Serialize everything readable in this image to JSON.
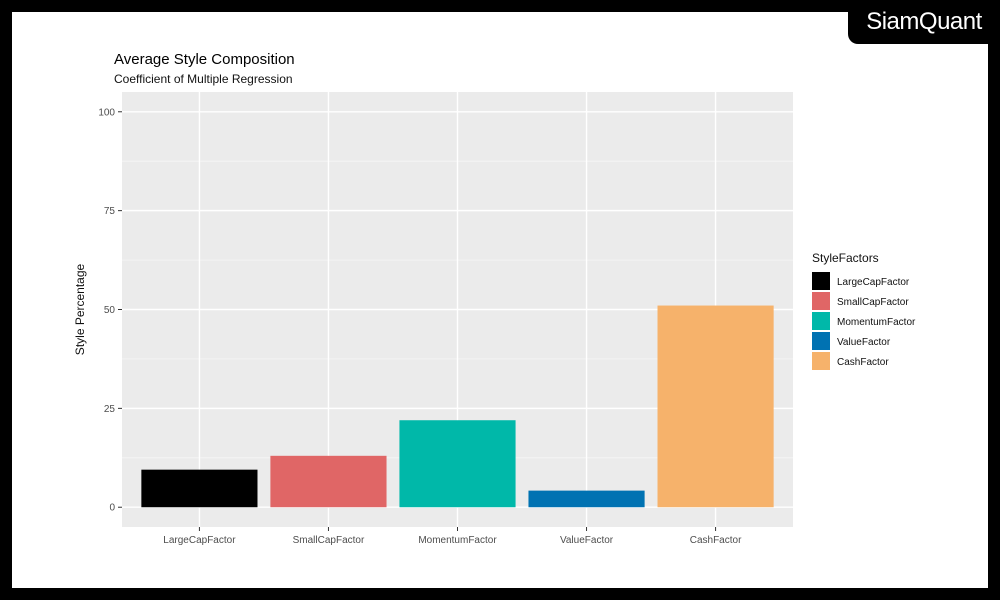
{
  "brand": {
    "name": "SiamQuant"
  },
  "chart_data": {
    "type": "bar",
    "title": "Average Style Composition",
    "subtitle": "Coefficient of Multiple Regression",
    "xlabel": "",
    "ylabel": "Style Percentage",
    "categories": [
      "LargeCapFactor",
      "SmallCapFactor",
      "MomentumFactor",
      "ValueFactor",
      "CashFactor"
    ],
    "values": [
      9.5,
      13,
      22,
      4.2,
      51
    ],
    "colors": [
      "#000000",
      "#E06666",
      "#00B8A9",
      "#0072B2",
      "#F6B26B"
    ],
    "ylim": [
      -5,
      105
    ],
    "yticks": [
      0,
      25,
      50,
      75,
      100
    ],
    "grid": true,
    "legend": {
      "title": "StyleFactors",
      "placement": "right",
      "entries": [
        "LargeCapFactor",
        "SmallCapFactor",
        "MomentumFactor",
        "ValueFactor",
        "CashFactor"
      ]
    }
  }
}
